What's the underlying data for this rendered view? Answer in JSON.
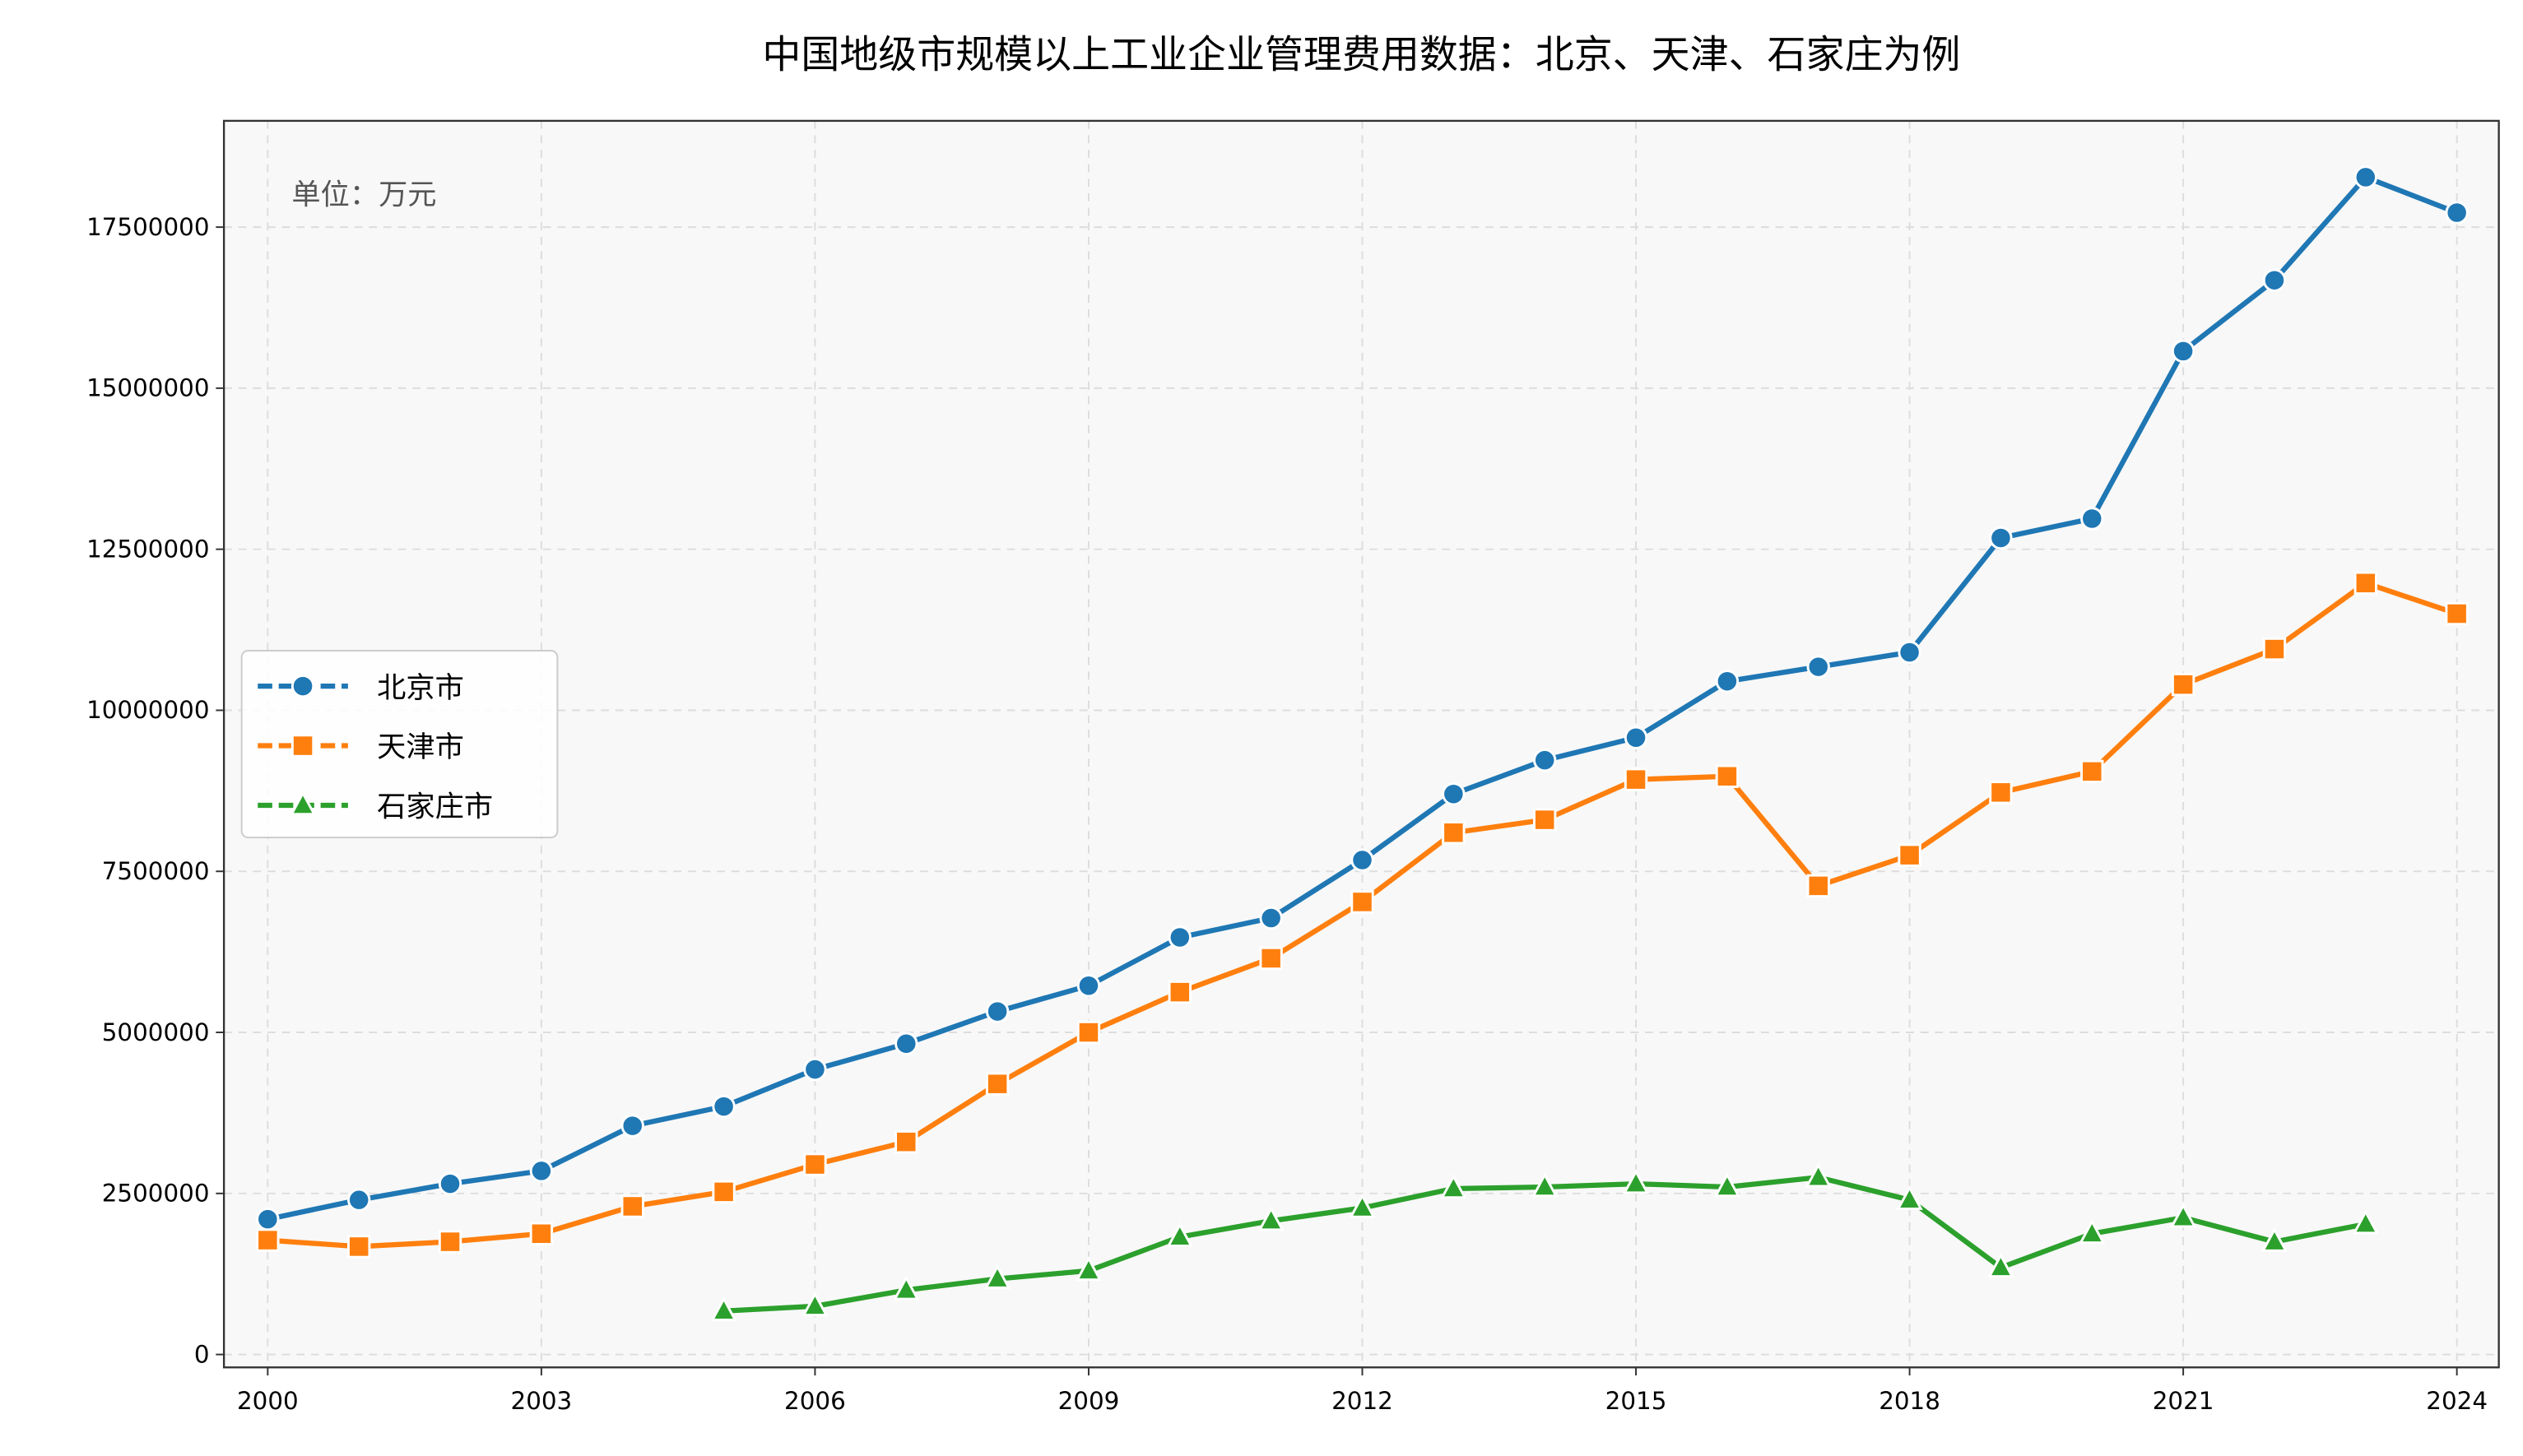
{
  "chart_data": {
    "type": "line",
    "title": "中国地级市规模以上工业企业管理费用数据：北京、天津、石家庄为例",
    "annotation": "单位：万元",
    "xlabel": "",
    "ylabel": "",
    "xlim": [
      1999.52,
      2024.46
    ],
    "ylim": [
      -200000,
      19150000
    ],
    "x_ticks": [
      2000,
      2003,
      2006,
      2009,
      2012,
      2015,
      2018,
      2021,
      2024
    ],
    "y_ticks": [
      0,
      2500000,
      5000000,
      7500000,
      10000000,
      12500000,
      15000000,
      17500000
    ],
    "grid": true,
    "legend_position": "center-left",
    "series": [
      {
        "name": "北京市",
        "color": "#1f77b4",
        "marker": "circle",
        "x": [
          2000,
          2001,
          2002,
          2003,
          2004,
          2005,
          2006,
          2007,
          2008,
          2009,
          2010,
          2011,
          2012,
          2013,
          2014,
          2015,
          2016,
          2017,
          2018,
          2019,
          2020,
          2021,
          2022,
          2023,
          2024
        ],
        "values": [
          2100000,
          2400000,
          2650000,
          2850000,
          3550000,
          3850000,
          4425000,
          4825000,
          5325000,
          5725000,
          6475000,
          6775000,
          7675000,
          8700000,
          9225000,
          9575000,
          10450000,
          10675000,
          10900000,
          12675000,
          12975000,
          15575000,
          16675000,
          18275000,
          17725000
        ]
      },
      {
        "name": "天津市",
        "color": "#ff7f0e",
        "marker": "square",
        "x": [
          2000,
          2001,
          2002,
          2003,
          2004,
          2005,
          2006,
          2007,
          2008,
          2009,
          2010,
          2011,
          2012,
          2013,
          2014,
          2015,
          2016,
          2017,
          2018,
          2019,
          2020,
          2021,
          2022,
          2023,
          2024
        ],
        "values": [
          1775000,
          1675000,
          1750000,
          1875000,
          2300000,
          2525000,
          2950000,
          3300000,
          4200000,
          5000000,
          5625000,
          6150000,
          7025000,
          8100000,
          8300000,
          8925000,
          8975000,
          7275000,
          7750000,
          8725000,
          9050000,
          10400000,
          10950000,
          11975000,
          11500000
        ]
      },
      {
        "name": "石家庄市",
        "color": "#2ca02c",
        "marker": "triangle",
        "x": [
          2005,
          2006,
          2007,
          2008,
          2009,
          2010,
          2011,
          2012,
          2013,
          2014,
          2015,
          2016,
          2017,
          2018,
          2019,
          2020,
          2021,
          2022,
          2023
        ],
        "values": [
          675000,
          750000,
          1000000,
          1175000,
          1300000,
          1825000,
          2075000,
          2275000,
          2575000,
          2600000,
          2650000,
          2600000,
          2750000,
          2400000,
          1350000,
          1875000,
          2125000,
          1750000,
          2025000
        ]
      }
    ]
  }
}
